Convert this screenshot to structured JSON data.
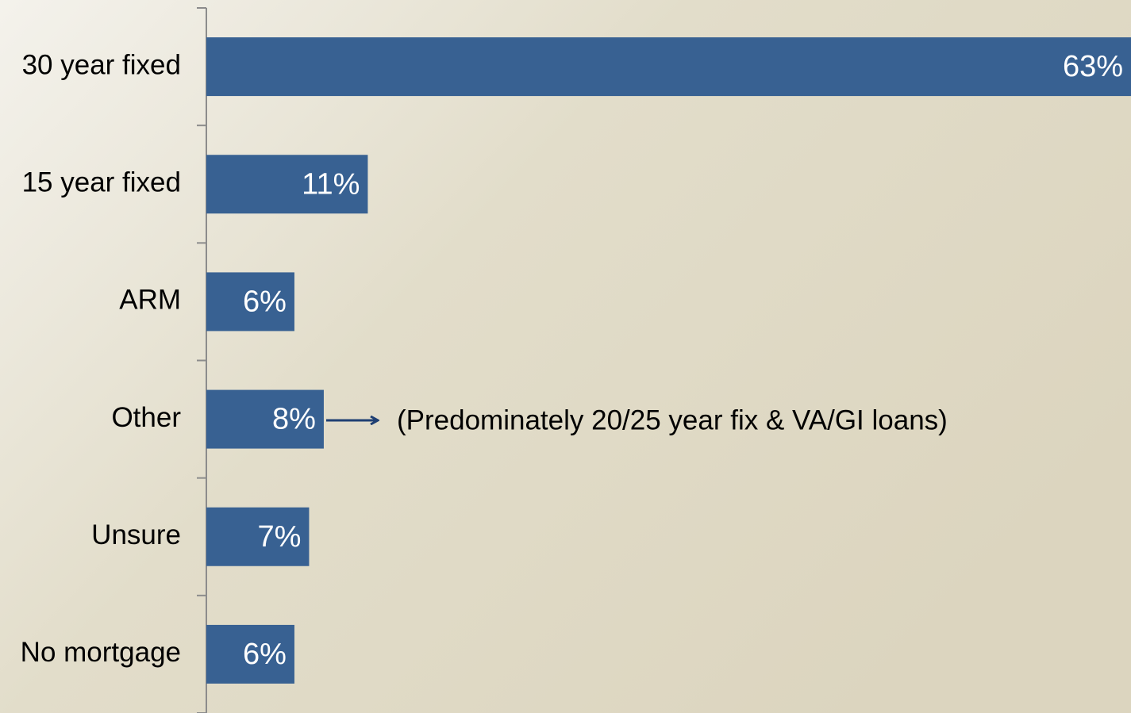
{
  "chart_data": {
    "type": "bar",
    "orientation": "horizontal",
    "categories": [
      "30 year fixed",
      "15 year fixed",
      "ARM",
      "Other",
      "Unsure",
      "No mortgage"
    ],
    "values": [
      63,
      11,
      6,
      8,
      7,
      6
    ],
    "value_labels": [
      "63%",
      "11%",
      "6%",
      "8%",
      "7%",
      "6%"
    ],
    "color": "#386192",
    "xlim": [
      0,
      63
    ],
    "annotation": "(Predominately 20/25 year fix & VA/GI loans)"
  }
}
